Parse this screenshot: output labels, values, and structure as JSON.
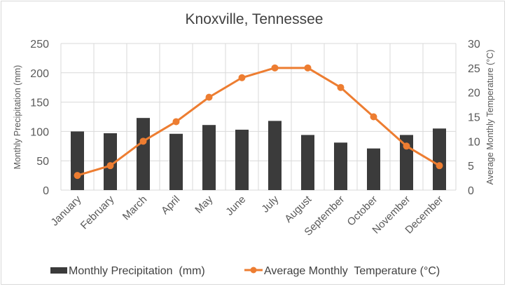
{
  "chart_data": {
    "type": "bar+line",
    "title": "Knoxville, Tennessee",
    "categories": [
      "January",
      "February",
      "March",
      "April",
      "May",
      "June",
      "July",
      "August",
      "September",
      "October",
      "November",
      "December"
    ],
    "series": [
      {
        "name": "Monthly Precipitation  (mm)",
        "type": "bar",
        "axis": "left",
        "color": "#3b3b3b",
        "values": [
          100,
          97,
          123,
          96,
          111,
          103,
          118,
          94,
          81,
          71,
          94,
          105
        ]
      },
      {
        "name": "Average Monthly  Temperature (°C)",
        "type": "line",
        "axis": "right",
        "color": "#ed7d31",
        "values": [
          3,
          5,
          10,
          14,
          19,
          23,
          25,
          25,
          21,
          15,
          9,
          5
        ]
      }
    ],
    "ylabel": "Monthly Precipitation (mm)",
    "ylabel_right": "Average Monthly  Temperature (°C)",
    "xlabel": "",
    "ylim": [
      0,
      250
    ],
    "ylim_right": [
      0,
      30
    ],
    "yticks": [
      "0",
      "50",
      "100",
      "150",
      "200",
      "250"
    ],
    "yticks_right": [
      "0",
      "5",
      "10",
      "15",
      "20",
      "25",
      "30"
    ],
    "grid": true,
    "legend": "bottom"
  }
}
